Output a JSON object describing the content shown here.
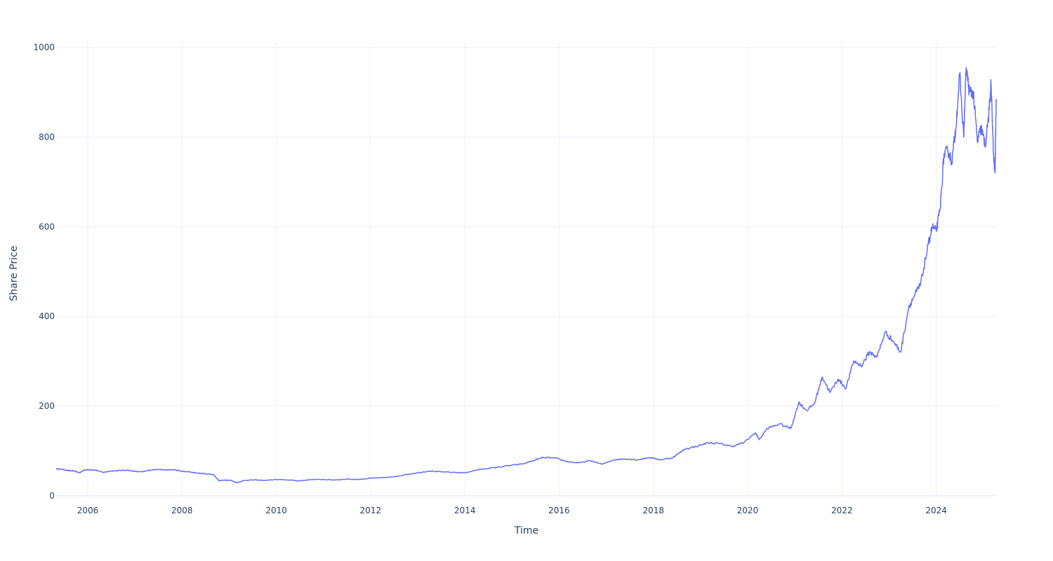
{
  "chart_data": {
    "type": "line",
    "title": "",
    "xlabel": "Time",
    "ylabel": "Share Price",
    "xlim": [
      "2005-05-01",
      "2025-04-15"
    ],
    "ylim": [
      -5,
      1012
    ],
    "grid": true,
    "legend": "none",
    "x_ticks": [
      "2006",
      "2008",
      "2010",
      "2012",
      "2014",
      "2016",
      "2018",
      "2020",
      "2022",
      "2024"
    ],
    "y_ticks": [
      0,
      200,
      400,
      600,
      800,
      1000
    ],
    "colors": {
      "line": "#636efa",
      "grid": "#ebf0f8",
      "text": "#2a3f5f"
    },
    "series": [
      {
        "values": [
          [
            "2005-05-01",
            60
          ],
          [
            "2005-06-15",
            59
          ],
          [
            "2005-08-01",
            56
          ],
          [
            "2005-09-15",
            55
          ],
          [
            "2005-11-01",
            51
          ],
          [
            "2005-12-01",
            57
          ],
          [
            "2006-01-15",
            58
          ],
          [
            "2006-03-01",
            57
          ],
          [
            "2006-05-01",
            52
          ],
          [
            "2006-07-01",
            55
          ],
          [
            "2006-09-01",
            56
          ],
          [
            "2006-11-01",
            57
          ],
          [
            "2007-01-01",
            54
          ],
          [
            "2007-03-01",
            53
          ],
          [
            "2007-05-01",
            57
          ],
          [
            "2007-07-01",
            59
          ],
          [
            "2007-09-01",
            57
          ],
          [
            "2007-11-01",
            58
          ],
          [
            "2008-01-01",
            54
          ],
          [
            "2008-03-01",
            53
          ],
          [
            "2008-05-01",
            50
          ],
          [
            "2008-07-01",
            49
          ],
          [
            "2008-09-01",
            47
          ],
          [
            "2008-10-15",
            33
          ],
          [
            "2008-12-01",
            35
          ],
          [
            "2009-01-15",
            34
          ],
          [
            "2009-03-01",
            29
          ],
          [
            "2009-05-01",
            34
          ],
          [
            "2009-07-01",
            35
          ],
          [
            "2009-10-01",
            34
          ],
          [
            "2010-01-01",
            36
          ],
          [
            "2010-04-01",
            35
          ],
          [
            "2010-07-01",
            33
          ],
          [
            "2010-10-01",
            36
          ],
          [
            "2011-01-01",
            36
          ],
          [
            "2011-04-01",
            35
          ],
          [
            "2011-07-01",
            37
          ],
          [
            "2011-10-01",
            36
          ],
          [
            "2012-01-01",
            39
          ],
          [
            "2012-04-01",
            40
          ],
          [
            "2012-07-01",
            42
          ],
          [
            "2012-10-01",
            47
          ],
          [
            "2013-01-01",
            51
          ],
          [
            "2013-04-01",
            55
          ],
          [
            "2013-07-01",
            53
          ],
          [
            "2013-10-01",
            52
          ],
          [
            "2014-01-01",
            51
          ],
          [
            "2014-04-01",
            57
          ],
          [
            "2014-07-01",
            61
          ],
          [
            "2014-10-01",
            64
          ],
          [
            "2015-01-01",
            68
          ],
          [
            "2015-04-01",
            71
          ],
          [
            "2015-07-01",
            80
          ],
          [
            "2015-09-01",
            85
          ],
          [
            "2015-12-01",
            84
          ],
          [
            "2016-03-01",
            76
          ],
          [
            "2016-06-01",
            73
          ],
          [
            "2016-09-01",
            78
          ],
          [
            "2016-12-01",
            70
          ],
          [
            "2017-03-01",
            80
          ],
          [
            "2017-06-01",
            82
          ],
          [
            "2017-09-01",
            80
          ],
          [
            "2017-12-01",
            85
          ],
          [
            "2018-03-01",
            80
          ],
          [
            "2018-06-01",
            85
          ],
          [
            "2018-09-01",
            104
          ],
          [
            "2018-12-01",
            110
          ],
          [
            "2019-03-01",
            118
          ],
          [
            "2019-06-01",
            116
          ],
          [
            "2019-09-01",
            110
          ],
          [
            "2019-12-01",
            118
          ],
          [
            "2020-03-01",
            140
          ],
          [
            "2020-04-01",
            125
          ],
          [
            "2020-06-01",
            150
          ],
          [
            "2020-09-01",
            160
          ],
          [
            "2020-12-01",
            150
          ],
          [
            "2021-02-01",
            208
          ],
          [
            "2021-04-01",
            190
          ],
          [
            "2021-06-01",
            205
          ],
          [
            "2021-08-01",
            265
          ],
          [
            "2021-10-01",
            230
          ],
          [
            "2021-12-01",
            260
          ],
          [
            "2022-02-01",
            240
          ],
          [
            "2022-04-01",
            300
          ],
          [
            "2022-06-01",
            290
          ],
          [
            "2022-08-01",
            320
          ],
          [
            "2022-10-01",
            310
          ],
          [
            "2022-12-01",
            365
          ],
          [
            "2023-02-01",
            345
          ],
          [
            "2023-04-01",
            320
          ],
          [
            "2023-06-01",
            420
          ],
          [
            "2023-08-01",
            455
          ],
          [
            "2023-09-01",
            470
          ],
          [
            "2023-11-01",
            560
          ],
          [
            "2023-12-01",
            600
          ],
          [
            "2024-01-01",
            590
          ],
          [
            "2024-02-01",
            640
          ],
          [
            "2024-03-01",
            760
          ],
          [
            "2024-04-01",
            770
          ],
          [
            "2024-05-01",
            745
          ],
          [
            "2024-06-01",
            820
          ],
          [
            "2024-07-01",
            940
          ],
          [
            "2024-08-01",
            800
          ],
          [
            "2024-08-20",
            955
          ],
          [
            "2024-09-15",
            900
          ],
          [
            "2024-10-15",
            900
          ],
          [
            "2024-11-15",
            790
          ],
          [
            "2024-12-15",
            820
          ],
          [
            "2025-01-15",
            780
          ],
          [
            "2025-02-15",
            860
          ],
          [
            "2025-03-01",
            920
          ],
          [
            "2025-03-20",
            760
          ],
          [
            "2025-04-01",
            720
          ],
          [
            "2025-04-10",
            885
          ]
        ]
      }
    ]
  }
}
